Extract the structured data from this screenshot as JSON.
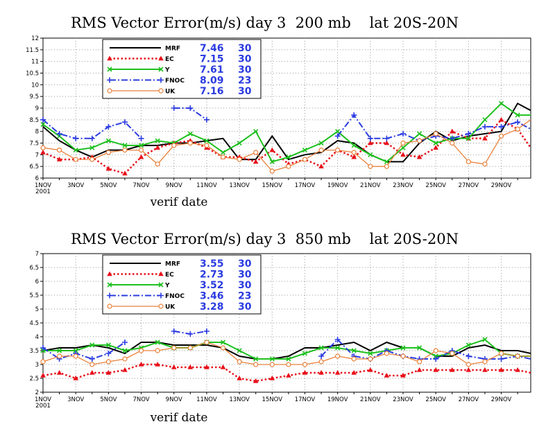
{
  "chart_data": [
    {
      "type": "line",
      "title": "RMS Vector Error(m/s) day 3  200 mb    lat 20S-20N",
      "xlabel": "verif date",
      "x_tick_labels": [
        "1NOV",
        "3NOV",
        "5NOV",
        "7NOV",
        "9NOV",
        "11NOV",
        "13NOV",
        "15NOV",
        "17NOV",
        "19NOV",
        "21NOV",
        "23NOV",
        "25NOV",
        "27NOV",
        "29NOV"
      ],
      "x_year_label": "2001",
      "x_range": [
        1,
        30.8
      ],
      "ylim": [
        6,
        12
      ],
      "y_ticks": [
        6,
        6.5,
        7,
        7.5,
        8,
        8.5,
        9,
        9.5,
        10,
        10.5,
        11,
        11.5,
        12
      ],
      "y_tick_labels": [
        "6",
        "6.5",
        "7",
        "7.5",
        "8",
        "8.5",
        "9",
        "9.5",
        "10",
        "10.5",
        "11",
        "11.5",
        "12"
      ],
      "grid": true,
      "legend_position": "top-left",
      "x": [
        1,
        2,
        3,
        4,
        5,
        6,
        7,
        8,
        9,
        10,
        11,
        12,
        13,
        14,
        15,
        16,
        17,
        18,
        19,
        20,
        21,
        22,
        23,
        24,
        25,
        26,
        27,
        28,
        29,
        30,
        30.8
      ],
      "series": [
        {
          "name": "MRF",
          "mean": "7.46",
          "count": "30",
          "color": "#000000",
          "dash": "solid",
          "marker": "none",
          "width": 2,
          "values": [
            8.2,
            7.6,
            7.2,
            6.9,
            7.2,
            7.2,
            7.4,
            7.4,
            7.5,
            7.5,
            7.6,
            7.7,
            6.8,
            6.8,
            7.8,
            6.8,
            7.0,
            7.1,
            7.6,
            7.5,
            7.0,
            6.7,
            6.7,
            7.5,
            8.0,
            7.6,
            7.8,
            7.9,
            8.0,
            9.2,
            8.9
          ]
        },
        {
          "name": "EC",
          "mean": "7.15",
          "count": "30",
          "color": "#e8101a",
          "dash": "dotted",
          "marker": "triangle",
          "width": 2.5,
          "values": [
            7.1,
            6.8,
            6.8,
            6.9,
            6.4,
            6.2,
            6.9,
            7.3,
            7.5,
            7.6,
            7.3,
            6.9,
            6.9,
            6.7,
            7.2,
            6.6,
            6.8,
            6.5,
            7.2,
            6.9,
            7.5,
            7.5,
            7.0,
            6.9,
            7.3,
            8.0,
            7.7,
            7.7,
            8.5,
            8.1,
            7.3
          ]
        },
        {
          "name": "Y",
          "mean": "7.61",
          "count": "30",
          "color": "#1ec01e",
          "dash": "solid",
          "marker": "x",
          "width": 2,
          "values": [
            8.3,
            7.8,
            7.2,
            7.3,
            7.6,
            7.4,
            7.4,
            7.6,
            7.5,
            7.9,
            7.6,
            7.1,
            7.5,
            8.0,
            6.7,
            6.9,
            7.2,
            7.5,
            8.0,
            7.4,
            7.0,
            6.7,
            7.3,
            7.9,
            7.5,
            7.7,
            7.7,
            8.5,
            9.2,
            8.7,
            8.7
          ]
        },
        {
          "name": "FNOC",
          "mean": "8.09",
          "count": "23",
          "color": "#2a3be0",
          "dash": "dashdot",
          "marker": "plus",
          "width": 2,
          "values": [
            8.5,
            7.9,
            7.7,
            7.7,
            8.2,
            8.4,
            7.7,
            null,
            9.0,
            9.0,
            8.5,
            null,
            null,
            null,
            null,
            null,
            null,
            null,
            7.8,
            8.7,
            7.7,
            7.7,
            7.9,
            7.6,
            7.8,
            7.7,
            7.9,
            8.2,
            8.2,
            8.4,
            8.1
          ]
        },
        {
          "name": "UK",
          "mean": "7.16",
          "count": "30",
          "color": "#e8803a",
          "dash": "solid",
          "marker": "circle",
          "width": 1.3,
          "values": [
            7.3,
            7.2,
            6.8,
            6.8,
            7.1,
            7.2,
            7.2,
            6.6,
            7.4,
            7.5,
            7.4,
            6.9,
            6.8,
            7.1,
            6.3,
            6.5,
            6.8,
            7.2,
            7.2,
            7.1,
            6.5,
            6.5,
            7.5,
            7.6,
            7.9,
            7.5,
            6.7,
            6.6,
            7.8,
            8.1,
            8.5
          ]
        }
      ]
    },
    {
      "type": "line",
      "title": "RMS Vector Error(m/s) day 3  850 mb    lat 20S-20N",
      "xlabel": "verif date",
      "x_tick_labels": [
        "1NOV",
        "3NOV",
        "5NOV",
        "7NOV",
        "9NOV",
        "11NOV",
        "13NOV",
        "15NOV",
        "17NOV",
        "19NOV",
        "21NOV",
        "23NOV",
        "25NOV",
        "27NOV",
        "29NOV"
      ],
      "x_year_label": "2001",
      "x_range": [
        1,
        30.8
      ],
      "ylim": [
        2,
        7
      ],
      "y_ticks": [
        2,
        2.5,
        3,
        3.5,
        4,
        4.5,
        5,
        5.5,
        6,
        6.5,
        7
      ],
      "y_tick_labels": [
        "2",
        "2.5",
        "3",
        "3.5",
        "4",
        "4.5",
        "5",
        "5.5",
        "6",
        "6.5",
        "7"
      ],
      "grid": true,
      "legend_position": "top-left",
      "x": [
        1,
        2,
        3,
        4,
        5,
        6,
        7,
        8,
        9,
        10,
        11,
        12,
        13,
        14,
        15,
        16,
        17,
        18,
        19,
        20,
        21,
        22,
        23,
        24,
        25,
        26,
        27,
        28,
        29,
        30,
        30.8
      ],
      "series": [
        {
          "name": "MRF",
          "mean": "3.55",
          "count": "30",
          "color": "#000000",
          "dash": "solid",
          "marker": "none",
          "width": 2,
          "values": [
            3.5,
            3.6,
            3.6,
            3.7,
            3.6,
            3.4,
            3.8,
            3.8,
            3.7,
            3.7,
            3.7,
            3.6,
            3.3,
            3.2,
            3.2,
            3.3,
            3.6,
            3.6,
            3.7,
            3.8,
            3.5,
            3.8,
            3.6,
            3.6,
            3.3,
            3.3,
            3.6,
            3.7,
            3.5,
            3.5,
            3.4
          ]
        },
        {
          "name": "EC",
          "mean": "2.73",
          "count": "30",
          "color": "#e8101a",
          "dash": "dotted",
          "marker": "triangle",
          "width": 2.5,
          "values": [
            2.6,
            2.7,
            2.5,
            2.7,
            2.7,
            2.8,
            3.0,
            3.0,
            2.9,
            2.9,
            2.9,
            2.9,
            2.5,
            2.4,
            2.5,
            2.6,
            2.7,
            2.7,
            2.7,
            2.7,
            2.8,
            2.6,
            2.6,
            2.8,
            2.8,
            2.8,
            2.8,
            2.8,
            2.8,
            2.8,
            2.7
          ]
        },
        {
          "name": "Y",
          "mean": "3.52",
          "count": "30",
          "color": "#1ec01e",
          "dash": "solid",
          "marker": "x",
          "width": 2,
          "values": [
            3.5,
            3.5,
            3.5,
            3.7,
            3.7,
            3.5,
            3.6,
            3.8,
            3.6,
            3.6,
            3.8,
            3.8,
            3.5,
            3.2,
            3.2,
            3.2,
            3.4,
            3.6,
            3.6,
            3.5,
            3.4,
            3.5,
            3.6,
            3.6,
            3.3,
            3.4,
            3.7,
            3.9,
            3.4,
            3.3,
            3.3
          ]
        },
        {
          "name": "FNOC",
          "mean": "3.46",
          "count": "23",
          "color": "#2a3be0",
          "dash": "dashdot",
          "marker": "plus",
          "width": 2,
          "values": [
            3.6,
            3.2,
            3.4,
            3.2,
            3.4,
            3.8,
            null,
            null,
            4.2,
            4.1,
            4.2,
            null,
            null,
            null,
            null,
            null,
            null,
            3.3,
            3.9,
            3.3,
            3.2,
            3.5,
            3.3,
            3.2,
            3.2,
            3.5,
            3.3,
            3.2,
            3.2,
            3.3,
            3.2
          ]
        },
        {
          "name": "UK",
          "mean": "3.28",
          "count": "30",
          "color": "#e8803a",
          "dash": "solid",
          "marker": "circle",
          "width": 1.3,
          "values": [
            3.1,
            3.3,
            3.3,
            3.0,
            3.1,
            3.2,
            3.5,
            3.5,
            3.6,
            3.6,
            3.8,
            3.6,
            3.1,
            3.0,
            3.0,
            3.0,
            3.0,
            3.1,
            3.3,
            3.2,
            3.2,
            3.4,
            3.3,
            3.1,
            3.5,
            3.4,
            3.0,
            3.1,
            3.4,
            3.3,
            3.3
          ]
        }
      ]
    }
  ]
}
